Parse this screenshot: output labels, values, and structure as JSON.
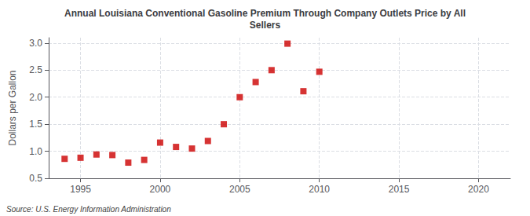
{
  "chart_data": {
    "type": "scatter",
    "title": "Annual Louisiana Conventional Gasoline Premium Through Company Outlets Price by All\nSellers",
    "ylabel": "Dollars per Gallon",
    "annotation": "Source: U.S. Energy Information Administration",
    "x": [
      1994,
      1995,
      1996,
      1997,
      1998,
      1999,
      2000,
      2001,
      2002,
      2003,
      2004,
      2005,
      2006,
      2007,
      2008,
      2009,
      2010
    ],
    "values": [
      0.86,
      0.88,
      0.94,
      0.93,
      0.79,
      0.84,
      1.16,
      1.08,
      1.05,
      1.19,
      1.5,
      2.0,
      2.28,
      2.5,
      2.99,
      2.11,
      2.47
    ],
    "color": "#cc0000",
    "marker": "square",
    "xlim": [
      1993,
      2022
    ],
    "ylim": [
      0.5,
      3.1
    ],
    "xticks": [
      1995,
      2000,
      2005,
      2010,
      2015,
      2020
    ],
    "yticks": [
      0.5,
      {
        "value": 1.0,
        "label": "1.0"
      },
      1.5,
      {
        "value": 2.0,
        "label": "2.0"
      },
      2.5,
      {
        "value": 3.0,
        "label": "3.0"
      }
    ],
    "grid": true
  }
}
